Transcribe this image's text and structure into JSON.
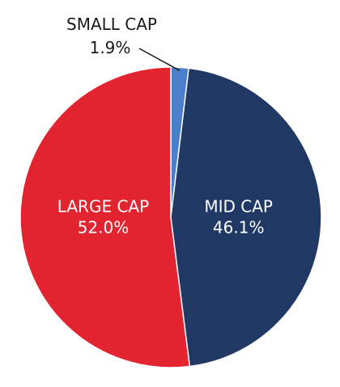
{
  "chart_data": {
    "type": "pie",
    "title": "",
    "slices": [
      {
        "label": "SMALL CAP",
        "value": 1.9,
        "display": "1.9%",
        "color": "#4a7fcb"
      },
      {
        "label": "MID CAP",
        "value": 46.1,
        "display": "46.1%",
        "color": "#1f3864"
      },
      {
        "label": "LARGE CAP",
        "value": 52.0,
        "display": "52.0%",
        "color": "#e3232f"
      }
    ],
    "start": "12 o'clock",
    "direction": "clockwise",
    "legend": "none"
  }
}
